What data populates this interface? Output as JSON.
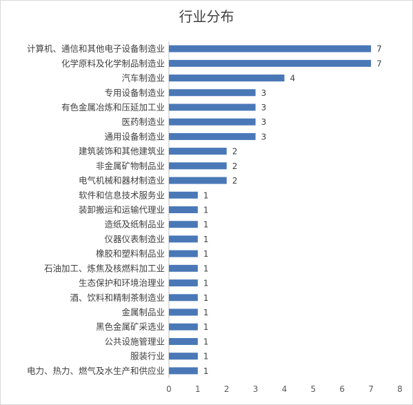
{
  "chart_data": {
    "type": "bar",
    "orientation": "horizontal",
    "title": "行业分布",
    "xlabel": "",
    "ylabel": "",
    "xlim": [
      0,
      8
    ],
    "xticks": [
      "0",
      "1",
      "2",
      "3",
      "4",
      "5",
      "6",
      "7",
      "8"
    ],
    "grid": false,
    "legend": "none",
    "bar_color": "#4a78b7",
    "categories": [
      "计算机、通信和其他电子设备制造业",
      "化学原料及化学制品制造业",
      "汽车制造业",
      "专用设备制造业",
      "有色金属冶炼和压延加工业",
      "医药制造业",
      "通用设备制造业",
      "建筑装饰和其他建筑业",
      "非金属矿物制品业",
      "电气机械和器材制造业",
      "软件和信息技术服务业",
      "装卸搬运和运输代理业",
      "造纸及纸制品业",
      "仪器仪表制造业",
      "橡胶和塑料制品业",
      "石油加工、炼焦及核燃料加工业",
      "生态保护和环境治理业",
      "酒、饮料和精制茶制造业",
      "金属制品业",
      "黑色金属矿采选业",
      "公共设施管理业",
      "服装行业",
      "电力、热力、燃气及水生产和供应业"
    ],
    "values": [
      7,
      7,
      4,
      3,
      3,
      3,
      3,
      2,
      2,
      2,
      1,
      1,
      1,
      1,
      1,
      1,
      1,
      1,
      1,
      1,
      1,
      1,
      1
    ]
  }
}
